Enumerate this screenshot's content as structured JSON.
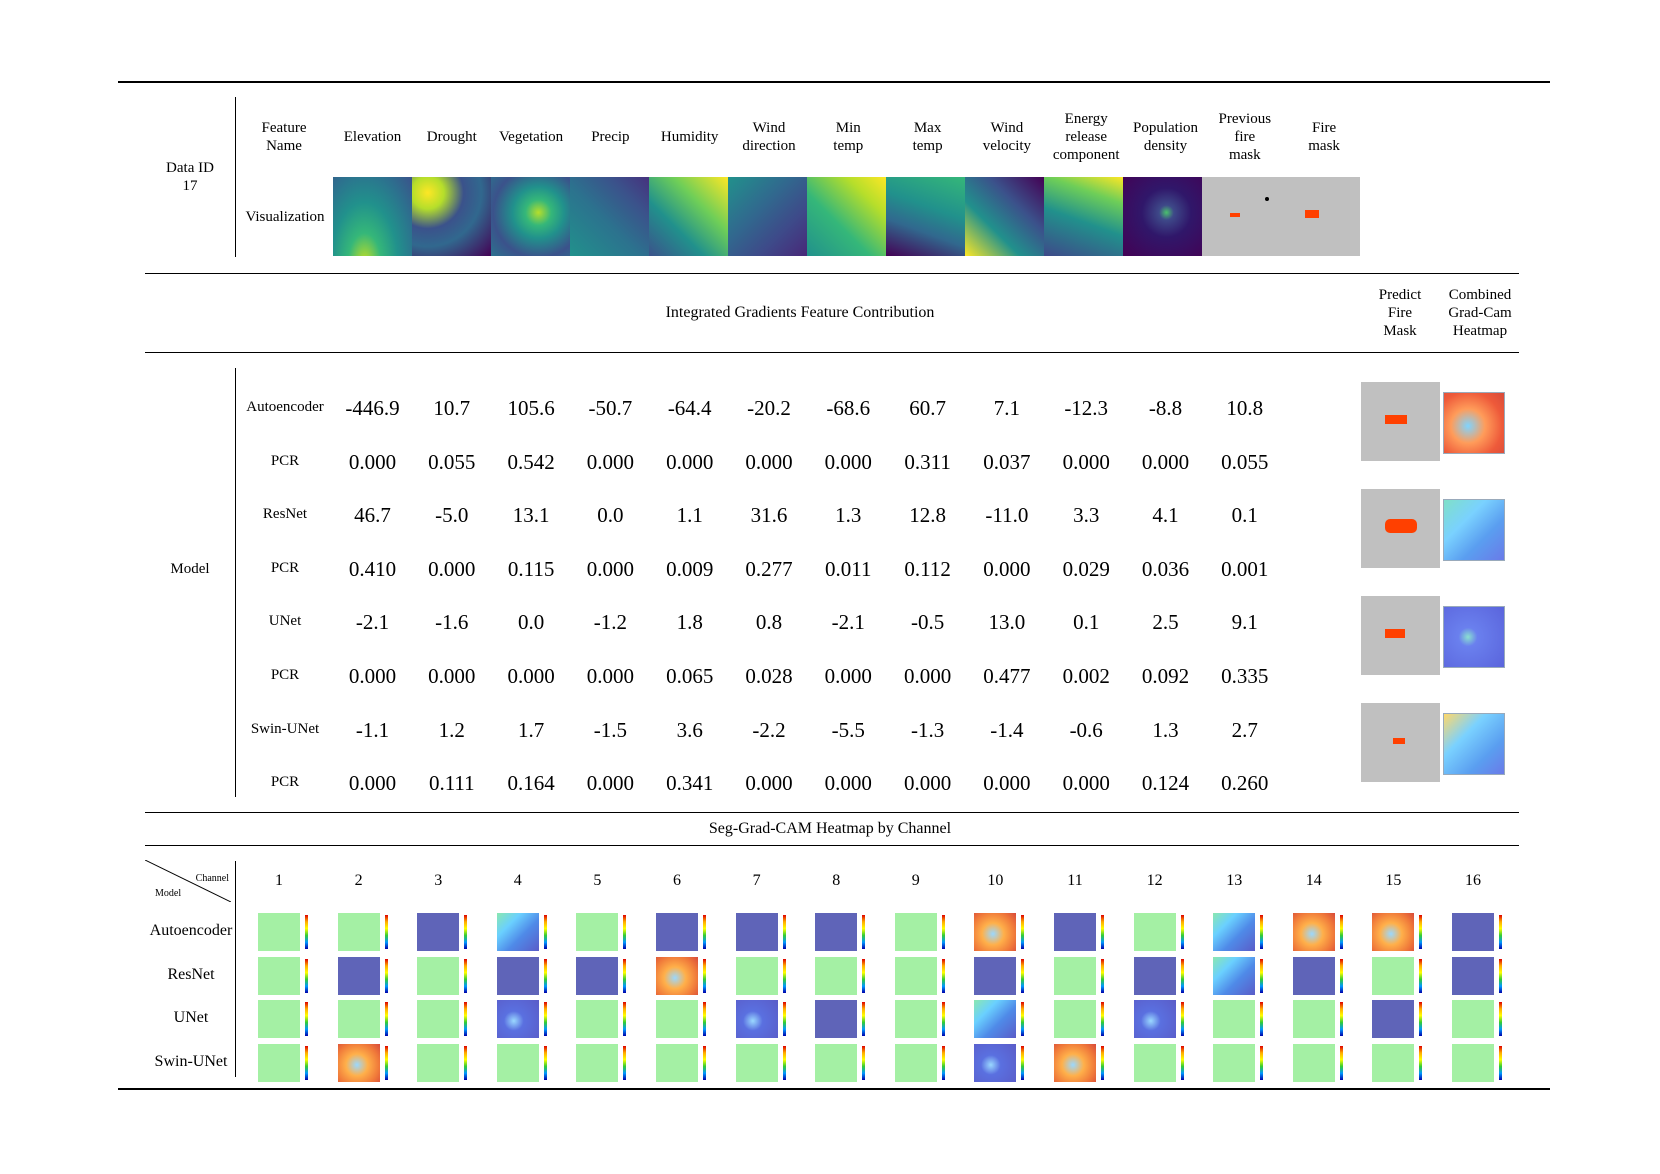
{
  "data_id_label": "Data ID\n17",
  "feature_name_label": "Feature\nName",
  "visualization_label": "Visualization",
  "features": [
    "Elevation",
    "Drought",
    "Vegetation",
    "Precip",
    "Humidity",
    "Wind\ndirection",
    "Min\ntemp",
    "Max\ntemp",
    "Wind\nvelocity",
    "Energy\nrelease\ncomponent",
    "Population\ndensity",
    "Previous\nfire\nmask",
    "Fire\nmask"
  ],
  "ig_title": "Integrated Gradients Feature Contribution",
  "predict_label": "Predict\nFire\nMask",
  "gradcam_label": "Combined\nGrad-Cam\nHeatmap",
  "model_label": "Model",
  "rows": [
    {
      "label": "Autoencoder",
      "values": [
        "-446.9",
        "10.7",
        "105.6",
        "-50.7",
        "-64.4",
        "-20.2",
        "-68.6",
        "60.7",
        "7.1",
        "-12.3",
        "-8.8",
        "10.8"
      ]
    },
    {
      "label": "PCR",
      "values": [
        "0.000",
        "0.055",
        "0.542",
        "0.000",
        "0.000",
        "0.000",
        "0.000",
        "0.311",
        "0.037",
        "0.000",
        "0.000",
        "0.055"
      ]
    },
    {
      "label": "ResNet",
      "values": [
        "46.7",
        "-5.0",
        "13.1",
        "0.0",
        "1.1",
        "31.6",
        "1.3",
        "12.8",
        "-11.0",
        "3.3",
        "4.1",
        "0.1"
      ]
    },
    {
      "label": "PCR",
      "values": [
        "0.410",
        "0.000",
        "0.115",
        "0.000",
        "0.009",
        "0.277",
        "0.011",
        "0.112",
        "0.000",
        "0.029",
        "0.036",
        "0.001"
      ]
    },
    {
      "label": "UNet",
      "values": [
        "-2.1",
        "-1.6",
        "0.0",
        "-1.2",
        "1.8",
        "0.8",
        "-2.1",
        "-0.5",
        "13.0",
        "0.1",
        "2.5",
        "9.1"
      ]
    },
    {
      "label": "PCR",
      "values": [
        "0.000",
        "0.000",
        "0.000",
        "0.000",
        "0.065",
        "0.028",
        "0.000",
        "0.000",
        "0.477",
        "0.002",
        "0.092",
        "0.335"
      ]
    },
    {
      "label": "Swin-UNet",
      "values": [
        "-1.1",
        "1.2",
        "1.7",
        "-1.5",
        "3.6",
        "-2.2",
        "-5.5",
        "-1.3",
        "-1.4",
        "-0.6",
        "1.3",
        "2.7"
      ]
    },
    {
      "label": "PCR",
      "values": [
        "0.000",
        "0.111",
        "0.164",
        "0.000",
        "0.341",
        "0.000",
        "0.000",
        "0.000",
        "0.000",
        "0.000",
        "0.124",
        "0.260"
      ]
    }
  ],
  "seg_title": "Seg-Grad-CAM Heatmap by Channel",
  "corner_channel": "Channel",
  "corner_model": "Model",
  "channels": [
    "1",
    "2",
    "3",
    "4",
    "5",
    "6",
    "7",
    "8",
    "9",
    "10",
    "11",
    "12",
    "13",
    "14",
    "15",
    "16"
  ],
  "seg_models": [
    "Autoencoder",
    "ResNet",
    "UNet",
    "Swin-UNet"
  ],
  "seg_grid": [
    [
      "green",
      "green",
      "navy",
      "jet",
      "green",
      "navy",
      "navy",
      "navy",
      "green",
      "warm",
      "navy",
      "green",
      "jet",
      "warm",
      "warm",
      "navy"
    ],
    [
      "green",
      "navy",
      "green",
      "navy",
      "navy",
      "warm",
      "green",
      "green",
      "green",
      "navy",
      "green",
      "navy",
      "jet",
      "navy",
      "green",
      "navy"
    ],
    [
      "green",
      "green",
      "green",
      "navyblue",
      "green",
      "green",
      "navyblue",
      "navy",
      "green",
      "jet",
      "green",
      "navyblue",
      "green",
      "green",
      "navy",
      "green"
    ],
    [
      "green",
      "warm",
      "green",
      "green",
      "green",
      "green",
      "green",
      "green",
      "green",
      "navyblue",
      "warm",
      "green",
      "green",
      "green",
      "green",
      "green"
    ]
  ],
  "colors": {
    "fire": "#ff4000",
    "mask_bg": "#c0c0c0",
    "green_cam": "#a4f0a4",
    "navy_cam": "#5f64b8"
  }
}
